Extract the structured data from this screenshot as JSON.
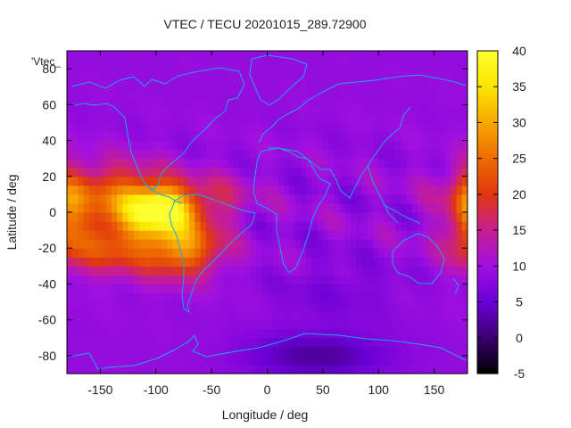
{
  "chart_data": {
    "type": "heatmap",
    "title": "VTEC / TECU 20201015_289.72900",
    "xlabel": "Longitude / deg",
    "ylabel": "Latitude / deg",
    "key_label": "'Vtec_",
    "xlim": [
      -180,
      180
    ],
    "ylim": [
      -90,
      90
    ],
    "x_ticks": [
      -150,
      -100,
      -50,
      0,
      50,
      100,
      150
    ],
    "y_ticks": [
      -80,
      -60,
      -40,
      -20,
      0,
      20,
      40,
      60,
      80
    ],
    "colorbar": {
      "range": [
        -5,
        40
      ],
      "ticks": [
        -5,
        0,
        5,
        10,
        15,
        20,
        25,
        30,
        35,
        40
      ],
      "palette": [
        "#000000",
        "#3b0070",
        "#6a00d6",
        "#a010e0",
        "#c81e90",
        "#e0380f",
        "#ee6b00",
        "#f7a800",
        "#fde500",
        "#ffff30"
      ]
    },
    "background_value": 9,
    "features": [
      {
        "name": "equatorial-anomaly-americas",
        "lon": -95,
        "lat": 2,
        "peak_value": 37
      },
      {
        "name": "crest-south-america",
        "lon": -75,
        "lat": -20,
        "peak_value": 30
      },
      {
        "name": "crest-north-pacific",
        "lon": -140,
        "lat": 10,
        "peak_value": 26
      },
      {
        "name": "crest-south-pacific",
        "lon": -140,
        "lat": -18,
        "peak_value": 26
      },
      {
        "name": "western-pacific-edge",
        "lon": 180,
        "lat": 0,
        "peak_value": 20
      },
      {
        "name": "antarctic-minimum",
        "lon": 45,
        "lat": -80,
        "peak_value": 2
      }
    ],
    "grid": false,
    "legend": "none"
  }
}
